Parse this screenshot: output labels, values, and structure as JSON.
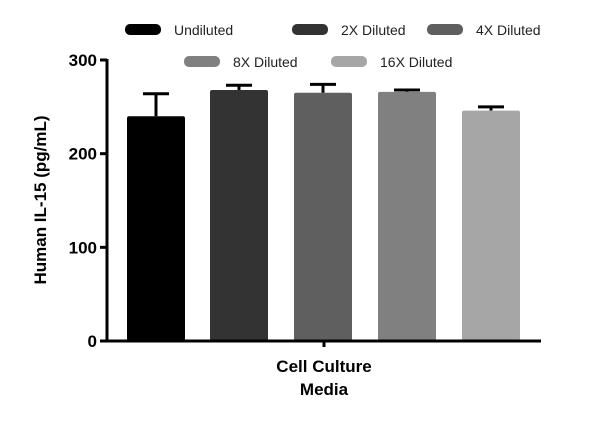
{
  "chart_data": {
    "type": "bar",
    "title": "",
    "categories": [
      "Undiluted",
      "2X Diluted",
      "4X Diluted",
      "8X Diluted",
      "16X Diluted"
    ],
    "values": [
      240,
      268,
      265,
      266,
      246
    ],
    "error_upper": [
      264,
      273,
      274,
      268,
      250
    ],
    "colors": [
      "#000000",
      "#333333",
      "#5f5f5f",
      "#808080",
      "#a6a6a6"
    ],
    "xlabel_lines": [
      "Cell Culture",
      "Media"
    ],
    "ylabel": "Human IL-15 (pg/mL)",
    "ylim": [
      0,
      300
    ],
    "yticks": [
      "0",
      "100",
      "200",
      "300"
    ],
    "legend": [
      "Undiluted",
      "2X Diluted",
      "4X Diluted",
      "8X Diluted",
      "16X Diluted"
    ],
    "legend_position": "top",
    "grid": false
  }
}
